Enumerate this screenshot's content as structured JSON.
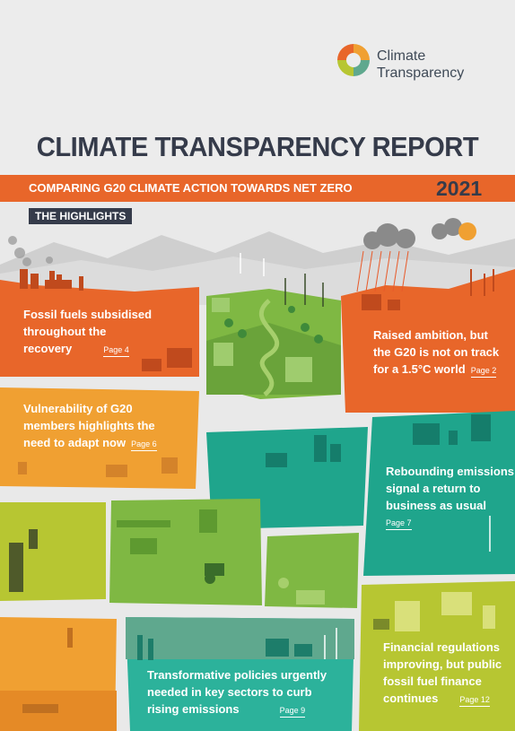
{
  "logo": {
    "line1": "Climate",
    "line2": "Transparency",
    "icon": "climate-transparency-logo"
  },
  "title": "CLIMATE TRANSPARENCY REPORT",
  "subtitle": "COMPARING G20 CLIMATE ACTION TOWARDS NET ZERO",
  "year": "2021",
  "section_label": "THE HIGHLIGHTS",
  "highlights": [
    {
      "lines": [
        "Fossil fuels subsidised",
        "throughout the",
        "recovery"
      ],
      "page": "Page 4"
    },
    {
      "lines": [
        "Raised ambition, but",
        "the G20 is not on track",
        "for a 1.5°C world"
      ],
      "page": "Page 2"
    },
    {
      "lines": [
        "Vulnerability of G20",
        "members highlights the",
        "need to adapt now"
      ],
      "page": "Page 6"
    },
    {
      "lines": [
        "Rebounding emissions",
        "signal a return to",
        "business as usual"
      ],
      "page": "Page 7"
    },
    {
      "lines": [
        "Transformative policies urgently",
        "needed in key sectors to curb",
        "rising emissions"
      ],
      "page": "Page 9"
    },
    {
      "lines": [
        "Financial regulations",
        "improving, but public",
        "fossil fuel finance",
        "continues"
      ],
      "page": "Page 12"
    }
  ],
  "colors": {
    "orange": "#e8662a",
    "amber": "#f0a032",
    "green": "#7fb843",
    "teal": "#1fa58c",
    "navy": "#353b4a"
  }
}
